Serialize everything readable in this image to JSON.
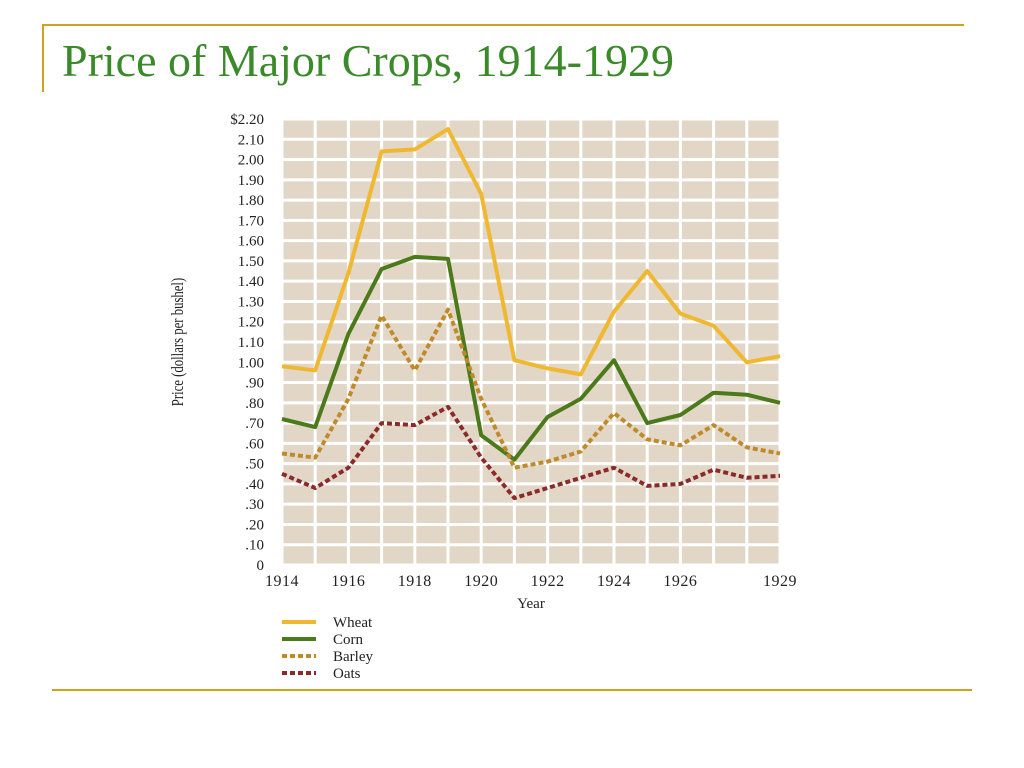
{
  "slide": {
    "title": "Price of Major Crops, 1914-1929"
  },
  "colors": {
    "plot_background": "#e2d7c6",
    "gridline": "#ffffff",
    "frame": "#d4a020",
    "title": "#3a8a2a"
  },
  "chart_data": {
    "type": "line",
    "title": "",
    "xlabel": "Year",
    "ylabel": "Price (dollars per bushel)",
    "x": [
      1914,
      1915,
      1916,
      1917,
      1918,
      1919,
      1920,
      1921,
      1922,
      1923,
      1924,
      1925,
      1926,
      1927,
      1928,
      1929
    ],
    "xlim": [
      1914,
      1929
    ],
    "ylim": [
      0,
      2.2
    ],
    "x_tick_labels": [
      {
        "year": 1914,
        "label": "1914"
      },
      {
        "year": 1916,
        "label": "1916"
      },
      {
        "year": 1918,
        "label": "1918"
      },
      {
        "year": 1920,
        "label": "1920"
      },
      {
        "year": 1922,
        "label": "1922"
      },
      {
        "year": 1924,
        "label": "1924"
      },
      {
        "year": 1926,
        "label": "1926"
      },
      {
        "year": 1929,
        "label": "1929"
      }
    ],
    "y_tick_labels": [
      {
        "value": 0,
        "label": "0"
      },
      {
        "value": 0.1,
        "label": ".10"
      },
      {
        "value": 0.2,
        "label": ".20"
      },
      {
        "value": 0.3,
        "label": ".30"
      },
      {
        "value": 0.4,
        "label": ".40"
      },
      {
        "value": 0.5,
        "label": ".50"
      },
      {
        "value": 0.6,
        "label": ".60"
      },
      {
        "value": 0.7,
        "label": ".70"
      },
      {
        "value": 0.8,
        "label": ".80"
      },
      {
        "value": 0.9,
        "label": ".90"
      },
      {
        "value": 1.0,
        "label": "1.00"
      },
      {
        "value": 1.1,
        "label": "1.10"
      },
      {
        "value": 1.2,
        "label": "1.20"
      },
      {
        "value": 1.3,
        "label": "1.30"
      },
      {
        "value": 1.4,
        "label": "1.40"
      },
      {
        "value": 1.5,
        "label": "1.50"
      },
      {
        "value": 1.6,
        "label": "1.60"
      },
      {
        "value": 1.7,
        "label": "1.70"
      },
      {
        "value": 1.8,
        "label": "1.80"
      },
      {
        "value": 1.9,
        "label": "1.90"
      },
      {
        "value": 2.0,
        "label": "2.00"
      },
      {
        "value": 2.1,
        "label": "2.10"
      },
      {
        "value": 2.2,
        "label": "$2.20"
      }
    ],
    "grid": true,
    "legend_position": "bottom-left",
    "series": [
      {
        "name": "Wheat",
        "color": "#f0b830",
        "style": "solid",
        "values": [
          0.98,
          0.96,
          1.44,
          2.04,
          2.05,
          2.15,
          1.83,
          1.01,
          0.97,
          0.94,
          1.25,
          1.45,
          1.24,
          1.18,
          1.0,
          1.03
        ]
      },
      {
        "name": "Corn",
        "color": "#4a7a1a",
        "style": "solid",
        "values": [
          0.72,
          0.68,
          1.14,
          1.46,
          1.52,
          1.51,
          0.64,
          0.52,
          0.73,
          0.82,
          1.01,
          0.7,
          0.74,
          0.85,
          0.84,
          0.8
        ]
      },
      {
        "name": "Barley",
        "color": "#c08a2a",
        "style": "dashed",
        "values": [
          0.55,
          0.53,
          0.82,
          1.23,
          0.96,
          1.26,
          0.82,
          0.48,
          0.51,
          0.56,
          0.75,
          0.62,
          0.59,
          0.69,
          0.58,
          0.55
        ]
      },
      {
        "name": "Oats",
        "color": "#8a2a2a",
        "style": "dashed",
        "values": [
          0.45,
          0.38,
          0.48,
          0.7,
          0.69,
          0.78,
          0.53,
          0.33,
          0.38,
          0.43,
          0.48,
          0.39,
          0.4,
          0.47,
          0.43,
          0.44
        ]
      }
    ]
  }
}
